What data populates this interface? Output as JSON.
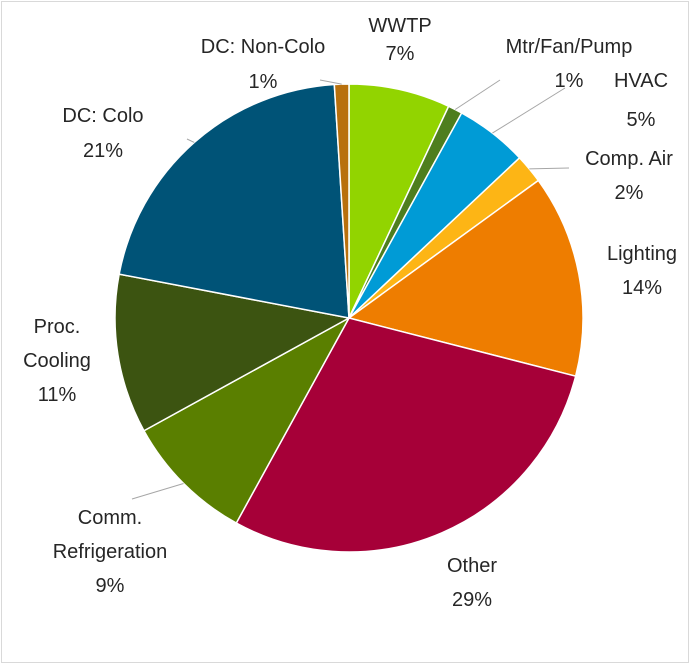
{
  "chart_data": {
    "type": "pie",
    "title": "",
    "slices": [
      {
        "name": "WWTP",
        "value": 7,
        "label": "7%",
        "color": "#92d400"
      },
      {
        "name": "Mtr/Fan/Pump",
        "value": 1,
        "label": "1%",
        "color": "#4e7e1e"
      },
      {
        "name": "HVAC",
        "value": 5,
        "label": "5%",
        "color": "#009bd6"
      },
      {
        "name": "Comp. Air",
        "value": 2,
        "label": "2%",
        "color": "#fdb515"
      },
      {
        "name": "Lighting",
        "value": 14,
        "label": "14%",
        "color": "#ee7d00"
      },
      {
        "name": "Other",
        "value": 29,
        "label": "29%",
        "color": "#a60038"
      },
      {
        "name": "Comm. Refrigeration",
        "value": 9,
        "label": "9%",
        "color": "#5a7f00"
      },
      {
        "name": "Proc. Cooling",
        "value": 11,
        "label": "11%",
        "color": "#3c5411"
      },
      {
        "name": "DC: Colo",
        "value": 21,
        "label": "21%",
        "color": "#005377"
      },
      {
        "name": "DC: Non-Colo",
        "value": 1,
        "label": "1%",
        "color": "#b8700d"
      }
    ],
    "label_lines": [
      "Comm.",
      "Refrigeration",
      "Proc.",
      "Cooling",
      "DC: Non-Colo",
      "DC: Colo",
      "Mtr/Fan/Pump",
      "HVAC",
      "Comp. Air",
      "WWTP",
      "Lighting",
      "Other"
    ],
    "legend": "none"
  }
}
